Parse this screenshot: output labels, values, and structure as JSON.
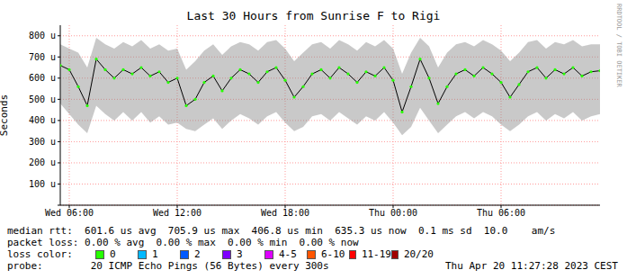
{
  "chart_data": {
    "type": "line",
    "title": "Last 30 Hours from Sunrise F to Rigi",
    "y_label": "Seconds",
    "watermark": "RRDTOOL / TOBI OETIKER",
    "grid": true,
    "xlim": [
      5.5,
      35.5
    ],
    "xticks": [
      {
        "value": 6,
        "label": "Wed 06:00"
      },
      {
        "value": 12,
        "label": "Wed 12:00"
      },
      {
        "value": 18,
        "label": "Wed 18:00"
      },
      {
        "value": 24,
        "label": "Thu 00:00"
      },
      {
        "value": 30,
        "label": "Thu 06:00"
      }
    ],
    "ylim": [
      0,
      850
    ],
    "yticks": [
      0,
      {
        "value": 100,
        "label": "100 u"
      },
      {
        "value": 200,
        "label": "200 u"
      },
      {
        "value": 300,
        "label": "300 u"
      },
      {
        "value": 400,
        "label": "400 u"
      },
      {
        "value": 500,
        "label": "500 u"
      },
      {
        "value": 600,
        "label": "600 u"
      },
      {
        "value": 700,
        "label": "700 u"
      },
      {
        "value": 800,
        "label": "800 u"
      }
    ],
    "x": [
      5.5,
      6.0,
      6.5,
      7.0,
      7.5,
      8.0,
      8.5,
      9.0,
      9.5,
      10.0,
      10.5,
      11.0,
      11.5,
      12.0,
      12.5,
      13.0,
      13.5,
      14.0,
      14.5,
      15.0,
      15.5,
      16.0,
      16.5,
      17.0,
      17.5,
      18.0,
      18.5,
      19.0,
      19.5,
      20.0,
      20.5,
      21.0,
      21.5,
      22.0,
      22.5,
      23.0,
      23.5,
      24.0,
      24.5,
      25.0,
      25.5,
      26.0,
      26.5,
      27.0,
      27.5,
      28.0,
      28.5,
      29.0,
      29.5,
      30.0,
      30.5,
      31.0,
      31.5,
      32.0,
      32.5,
      33.0,
      33.5,
      34.0,
      34.5,
      35.0,
      35.5
    ],
    "series": [
      {
        "name": "median rtt",
        "color": "#000000",
        "marker": "#26ff00",
        "values": [
          660,
          640,
          560,
          470,
          690,
          640,
          600,
          640,
          620,
          650,
          610,
          630,
          580,
          600,
          470,
          500,
          580,
          610,
          540,
          600,
          640,
          620,
          580,
          630,
          650,
          590,
          510,
          560,
          620,
          640,
          600,
          650,
          620,
          580,
          630,
          610,
          650,
          590,
          440,
          560,
          690,
          600,
          480,
          560,
          620,
          640,
          610,
          650,
          620,
          580,
          510,
          570,
          630,
          650,
          600,
          640,
          620,
          650,
          610,
          630,
          635
        ]
      }
    ],
    "smoke": {
      "color": "#888888",
      "min": [
        480,
        430,
        380,
        340,
        470,
        430,
        400,
        440,
        400,
        440,
        390,
        420,
        380,
        390,
        360,
        350,
        380,
        410,
        360,
        400,
        430,
        410,
        380,
        420,
        440,
        390,
        350,
        370,
        420,
        430,
        400,
        440,
        410,
        380,
        420,
        400,
        440,
        390,
        330,
        370,
        460,
        400,
        340,
        380,
        420,
        440,
        410,
        440,
        420,
        380,
        350,
        380,
        420,
        440,
        400,
        430,
        410,
        440,
        400,
        420,
        430
      ],
      "max": [
        760,
        740,
        720,
        650,
        790,
        760,
        740,
        770,
        750,
        780,
        740,
        760,
        730,
        740,
        640,
        680,
        730,
        760,
        710,
        750,
        770,
        760,
        730,
        770,
        780,
        740,
        680,
        720,
        760,
        770,
        740,
        780,
        760,
        730,
        770,
        750,
        780,
        740,
        620,
        720,
        790,
        750,
        650,
        720,
        760,
        770,
        750,
        780,
        760,
        730,
        680,
        720,
        770,
        780,
        740,
        770,
        760,
        780,
        750,
        760,
        760
      ]
    },
    "annotations": [
      "median rtt:  601.6 us avg  705.9 us max  406.8 us min  635.3 us now  0.1 ms sd  10.0    am/s",
      "packet loss: 0.00 % avg  0.00 % max  0.00 % min  0.00 % now",
      "probe:        20 ICMP Echo Pings (56 Bytes) every 300s",
      "Thu Apr 20 11:27:28 2023 CEST"
    ],
    "loss_color_label": "loss color:",
    "loss_colors": [
      {
        "label": "0",
        "color": "#26ff00"
      },
      {
        "label": "1",
        "color": "#00b8ff"
      },
      {
        "label": "2",
        "color": "#0059ff"
      },
      {
        "label": "3",
        "color": "#7e00ff"
      },
      {
        "label": "4-5",
        "color": "#dd00ff"
      },
      {
        "label": "6-10",
        "color": "#ff5500"
      },
      {
        "label": "11-19",
        "color": "#ff0000"
      },
      {
        "label": "20/20",
        "color": "#a10000"
      }
    ]
  }
}
